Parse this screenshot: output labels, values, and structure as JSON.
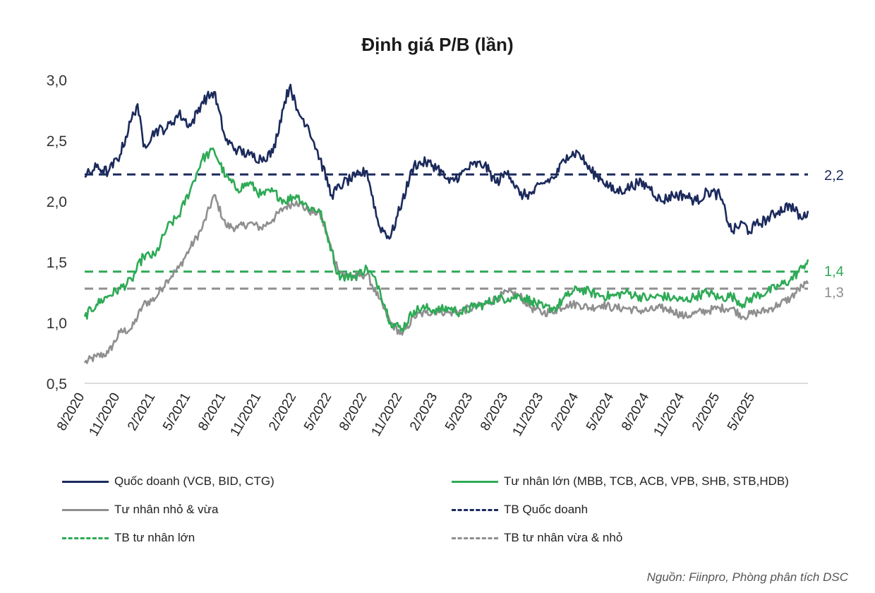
{
  "chart_data": {
    "type": "line",
    "title": "Định giá P/B (lần)",
    "xlabel": "",
    "ylabel": "",
    "ylim": [
      0.5,
      3.0
    ],
    "yticks": [
      "0,5",
      "1,0",
      "1,5",
      "2,0",
      "2,5",
      "3,0"
    ],
    "ytick_values": [
      0.5,
      1.0,
      1.5,
      2.0,
      2.5,
      3.0
    ],
    "x_start": "2020-08",
    "x_end": "2025-09",
    "xticks": [
      "8/2020",
      "11/2020",
      "2/2021",
      "5/2021",
      "8/2021",
      "11/2021",
      "2/2022",
      "5/2022",
      "8/2022",
      "11/2022",
      "2/2023",
      "5/2023",
      "8/2023",
      "11/2023",
      "2/2024",
      "5/2024",
      "8/2024",
      "11/2024",
      "2/2025",
      "5/2025"
    ],
    "series": [
      {
        "name": "Quốc doanh (VCB, BID, CTG)",
        "color": "#1b2a5c",
        "style": "solid",
        "months": [
          0,
          1,
          2,
          3,
          4,
          4.5,
          5,
          6,
          7,
          8,
          9,
          10,
          11,
          12,
          13,
          14,
          15,
          16,
          17,
          17.5,
          18,
          19,
          20,
          21,
          22,
          23,
          24,
          25,
          26,
          27,
          28,
          29,
          30,
          31,
          32,
          33,
          34,
          35,
          36,
          37,
          38,
          39,
          40,
          41,
          42,
          43,
          44,
          45,
          46,
          47,
          48,
          49,
          50,
          51,
          52,
          53,
          54,
          55,
          56,
          56.5,
          57,
          58,
          59,
          60,
          61,
          61.5
        ],
        "values": [
          2.2,
          2.28,
          2.24,
          2.38,
          2.68,
          2.8,
          2.45,
          2.58,
          2.6,
          2.72,
          2.62,
          2.82,
          2.9,
          2.5,
          2.42,
          2.38,
          2.35,
          2.4,
          2.82,
          2.96,
          2.75,
          2.62,
          2.35,
          2.05,
          2.15,
          2.2,
          2.25,
          1.8,
          1.7,
          2.0,
          2.3,
          2.32,
          2.28,
          2.15,
          2.22,
          2.3,
          2.3,
          2.15,
          2.25,
          2.05,
          2.06,
          2.15,
          2.2,
          2.38,
          2.4,
          2.25,
          2.18,
          2.08,
          2.1,
          2.15,
          2.12,
          2.0,
          2.05,
          2.05,
          2.0,
          2.08,
          2.05,
          1.75,
          1.82,
          1.75,
          1.8,
          1.85,
          1.92,
          1.97,
          1.85,
          1.92
        ]
      },
      {
        "name": "Tư nhân lớn (MBB, TCB, ACB, VPB, SHB, STB,HDB)",
        "color": "#2eaa56",
        "style": "solid",
        "months": [
          0,
          1,
          2,
          3,
          4,
          5,
          6,
          7,
          8,
          9,
          10,
          11,
          12,
          13,
          14,
          15,
          16,
          17,
          18,
          19,
          20,
          21,
          21.5,
          22,
          23,
          24,
          25,
          26,
          27,
          28,
          29,
          30,
          31,
          32,
          33,
          34,
          35,
          36,
          37,
          38,
          39,
          40,
          41,
          42,
          43,
          44,
          45,
          46,
          47,
          48,
          49,
          50,
          51,
          52,
          53,
          54,
          55,
          56,
          57,
          58,
          59,
          60,
          61,
          61.5
        ],
        "values": [
          1.05,
          1.15,
          1.22,
          1.28,
          1.35,
          1.55,
          1.55,
          1.78,
          1.88,
          2.1,
          2.35,
          2.42,
          2.2,
          2.1,
          2.15,
          2.05,
          2.08,
          2.0,
          2.05,
          1.95,
          1.92,
          1.6,
          1.4,
          1.38,
          1.38,
          1.45,
          1.3,
          1.0,
          0.95,
          1.1,
          1.12,
          1.1,
          1.12,
          1.08,
          1.13,
          1.15,
          1.2,
          1.2,
          1.22,
          1.18,
          1.12,
          1.12,
          1.22,
          1.28,
          1.25,
          1.22,
          1.22,
          1.25,
          1.22,
          1.2,
          1.22,
          1.2,
          1.18,
          1.22,
          1.25,
          1.2,
          1.22,
          1.15,
          1.22,
          1.25,
          1.3,
          1.35,
          1.45,
          1.52
        ]
      },
      {
        "name": "Tư nhân nhỏ & vừa",
        "color": "#8f8f8f",
        "style": "solid",
        "months": [
          0,
          1,
          2,
          3,
          4,
          5,
          6,
          7,
          8,
          9,
          10,
          11,
          12,
          13,
          14,
          15,
          16,
          17,
          18,
          19,
          20,
          21,
          21.5,
          22,
          23,
          24,
          25,
          26,
          27,
          28,
          29,
          30,
          31,
          32,
          33,
          34,
          35,
          36,
          37,
          38,
          39,
          40,
          41,
          42,
          43,
          44,
          45,
          46,
          47,
          48,
          49,
          50,
          51,
          52,
          53,
          54,
          55,
          56,
          57,
          58,
          59,
          60,
          61,
          61.5
        ],
        "values": [
          0.67,
          0.72,
          0.75,
          0.92,
          0.95,
          1.15,
          1.2,
          1.35,
          1.45,
          1.62,
          1.78,
          2.05,
          1.8,
          1.78,
          1.82,
          1.78,
          1.85,
          1.95,
          2.0,
          1.92,
          1.9,
          1.6,
          1.45,
          1.4,
          1.38,
          1.4,
          1.2,
          1.0,
          0.9,
          1.05,
          1.08,
          1.1,
          1.08,
          1.1,
          1.12,
          1.15,
          1.2,
          1.25,
          1.22,
          1.12,
          1.08,
          1.1,
          1.15,
          1.15,
          1.12,
          1.15,
          1.12,
          1.12,
          1.1,
          1.1,
          1.12,
          1.1,
          1.05,
          1.08,
          1.1,
          1.12,
          1.12,
          1.05,
          1.08,
          1.1,
          1.15,
          1.2,
          1.3,
          1.32
        ]
      },
      {
        "name": "TB Quốc doanh",
        "color": "#1b2a5c",
        "style": "dashed",
        "value": 2.22,
        "label": "2,2"
      },
      {
        "name": "TB tư nhân lớn",
        "color": "#2eaa56",
        "style": "dashed",
        "value": 1.42,
        "label": "1,4"
      },
      {
        "name": "TB tư nhân vừa & nhỏ",
        "color": "#8f8f8f",
        "style": "dashed",
        "value": 1.28,
        "label": "1,3"
      }
    ],
    "legend_position": "bottom"
  },
  "source": "Nguồn: Fiinpro, Phòng phân tích DSC"
}
